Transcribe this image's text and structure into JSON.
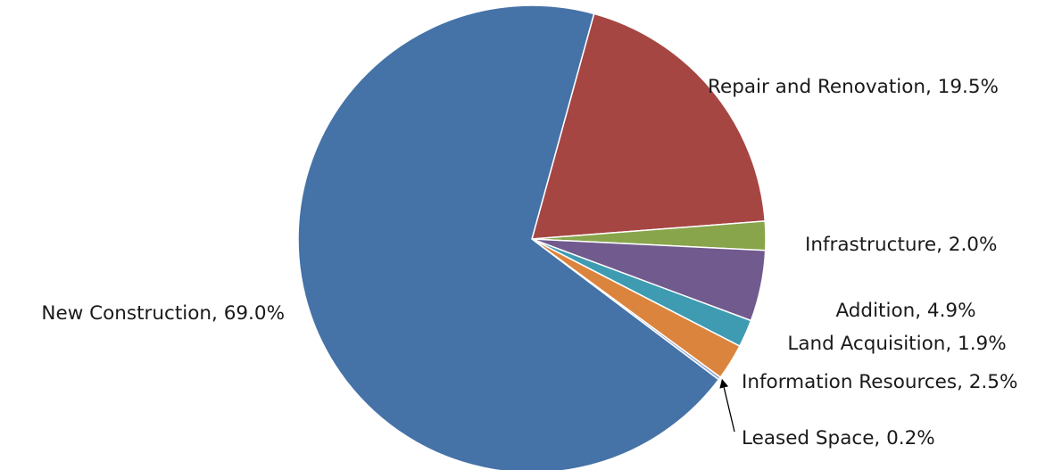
{
  "chart_data": {
    "type": "pie",
    "title": "",
    "start_angle_deg": 15.4,
    "direction": "clockwise",
    "slices": [
      {
        "name": "Repair and Renovation",
        "value": 19.5,
        "label": "Repair and Renovation, 19.5%",
        "color": "#A64643"
      },
      {
        "name": "Infrastructure",
        "value": 2.0,
        "label": "Infrastructure, 2.0%",
        "color": "#88A54B"
      },
      {
        "name": "Addition",
        "value": 4.9,
        "label": "Addition, 4.9%",
        "color": "#715A8E"
      },
      {
        "name": "Land Acquisition",
        "value": 1.9,
        "label": "Land Acquisition, 1.9%",
        "color": "#3E9BB1"
      },
      {
        "name": "Information Resources",
        "value": 2.5,
        "label": "Information Resources, 2.5%",
        "color": "#DB843D"
      },
      {
        "name": "Leased Space",
        "value": 0.2,
        "label": "Leased Space, 0.2%",
        "color": "#93A9CF"
      },
      {
        "name": "New Construction",
        "value": 69.0,
        "label": "New Construction, 69.0%",
        "color": "#4572A7"
      }
    ]
  }
}
